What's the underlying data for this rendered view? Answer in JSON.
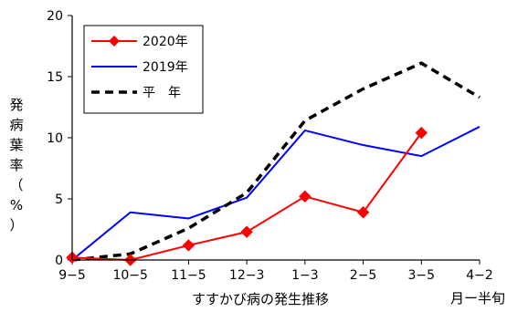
{
  "chart_data": {
    "type": "line",
    "categories": [
      "9−5",
      "10−5",
      "11−5",
      "12−3",
      "1−3",
      "2−5",
      "3−5",
      "4−2"
    ],
    "x_unit_label": "月ー半旬",
    "xlabel": "すすかび病の発生推移",
    "ylabel": "発病葉率（%）",
    "ylim": [
      0,
      20
    ],
    "yticks": [
      0,
      5,
      10,
      15,
      20
    ],
    "grid": false,
    "legend_placement": "top-left",
    "series": [
      {
        "name": "2020年",
        "color": "#ff0000",
        "style": "solid",
        "marker": "diamond",
        "values": [
          0.2,
          0.0,
          1.2,
          2.3,
          5.2,
          3.9,
          10.4,
          null
        ]
      },
      {
        "name": "2019年",
        "color": "#0000ff",
        "style": "solid",
        "marker": "none",
        "values": [
          0.0,
          3.9,
          3.4,
          5.1,
          10.6,
          9.4,
          8.5,
          10.9
        ]
      },
      {
        "name": "平　年",
        "color": "#000000",
        "style": "dashed",
        "marker": "none",
        "values": [
          0.0,
          0.5,
          2.6,
          5.5,
          11.4,
          14.0,
          16.1,
          13.3
        ]
      }
    ]
  }
}
